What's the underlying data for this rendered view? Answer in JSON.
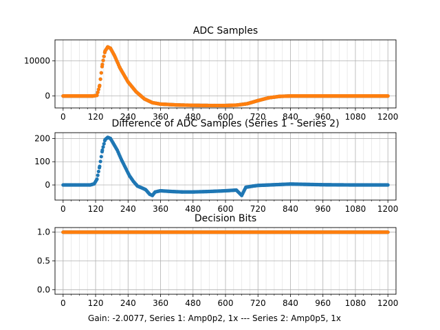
{
  "caption": "Gain: -2.0077, Series 1: Amp0p2, 1x --- Series 2: Amp0p5, 1x",
  "colors": {
    "series1": "#1f77b4",
    "series2": "#ff7f0e",
    "grid": "#b0b0b0",
    "axes": "#000000"
  },
  "chart_data": [
    {
      "type": "scatter",
      "title": "ADC Samples",
      "xlim": [
        -30,
        1230
      ],
      "ylim": [
        -3400,
        16000
      ],
      "xticks": [
        0,
        120,
        240,
        360,
        480,
        600,
        720,
        840,
        960,
        1080,
        1200
      ],
      "xminor_step": 30,
      "yticks": [
        0,
        10000
      ],
      "grid": true,
      "series": [
        {
          "color": "series1",
          "points": [
            [
              0,
              0
            ],
            [
              110,
              0
            ],
            [
              125,
              200
            ],
            [
              135,
              3000
            ],
            [
              145,
              9000
            ],
            [
              155,
              12800
            ],
            [
              165,
              14000
            ],
            [
              175,
              13600
            ],
            [
              190,
              11500
            ],
            [
              210,
              8000
            ],
            [
              240,
              4000
            ],
            [
              270,
              1200
            ],
            [
              300,
              -800
            ],
            [
              330,
              -1900
            ],
            [
              360,
              -2300
            ],
            [
              420,
              -2550
            ],
            [
              480,
              -2650
            ],
            [
              540,
              -2700
            ],
            [
              600,
              -2700
            ],
            [
              640,
              -2600
            ],
            [
              680,
              -2200
            ],
            [
              720,
              -1300
            ],
            [
              760,
              -500
            ],
            [
              800,
              -100
            ],
            [
              840,
              0
            ],
            [
              960,
              0
            ],
            [
              1080,
              0
            ],
            [
              1200,
              0
            ]
          ]
        },
        {
          "color": "series2",
          "points": [
            [
              0,
              0
            ],
            [
              110,
              0
            ],
            [
              125,
              200
            ],
            [
              135,
              3000
            ],
            [
              145,
              9000
            ],
            [
              155,
              12800
            ],
            [
              165,
              14000
            ],
            [
              175,
              13600
            ],
            [
              190,
              11500
            ],
            [
              210,
              8000
            ],
            [
              240,
              4000
            ],
            [
              270,
              1200
            ],
            [
              300,
              -800
            ],
            [
              330,
              -1900
            ],
            [
              360,
              -2300
            ],
            [
              420,
              -2550
            ],
            [
              480,
              -2650
            ],
            [
              540,
              -2700
            ],
            [
              600,
              -2700
            ],
            [
              640,
              -2600
            ],
            [
              680,
              -2200
            ],
            [
              720,
              -1300
            ],
            [
              760,
              -500
            ],
            [
              800,
              -100
            ],
            [
              840,
              0
            ],
            [
              960,
              0
            ],
            [
              1080,
              0
            ],
            [
              1200,
              0
            ]
          ]
        }
      ]
    },
    {
      "type": "scatter",
      "title": "Difference of ADC Samples (Series 1 - Series 2)",
      "xlim": [
        -30,
        1230
      ],
      "ylim": [
        -65,
        225
      ],
      "xticks": [
        0,
        120,
        240,
        360,
        480,
        600,
        720,
        840,
        960,
        1080,
        1200
      ],
      "xminor_step": 30,
      "yticks": [
        0,
        100,
        200
      ],
      "grid": true,
      "series": [
        {
          "color": "series1",
          "points": [
            [
              0,
              0
            ],
            [
              100,
              0
            ],
            [
              115,
              5
            ],
            [
              125,
              25
            ],
            [
              135,
              80
            ],
            [
              145,
              150
            ],
            [
              155,
              195
            ],
            [
              165,
              205
            ],
            [
              175,
              200
            ],
            [
              185,
              180
            ],
            [
              200,
              150
            ],
            [
              215,
              110
            ],
            [
              230,
              75
            ],
            [
              245,
              40
            ],
            [
              260,
              15
            ],
            [
              275,
              -5
            ],
            [
              290,
              -12
            ],
            [
              305,
              -20
            ],
            [
              320,
              -40
            ],
            [
              330,
              -45
            ],
            [
              340,
              -30
            ],
            [
              360,
              -25
            ],
            [
              400,
              -28
            ],
            [
              440,
              -30
            ],
            [
              480,
              -30
            ],
            [
              540,
              -28
            ],
            [
              600,
              -25
            ],
            [
              640,
              -22
            ],
            [
              660,
              -45
            ],
            [
              675,
              -10
            ],
            [
              700,
              -5
            ],
            [
              720,
              -2
            ],
            [
              760,
              0
            ],
            [
              800,
              2
            ],
            [
              840,
              4
            ],
            [
              880,
              3
            ],
            [
              960,
              1
            ],
            [
              1080,
              0
            ],
            [
              1200,
              0
            ]
          ]
        }
      ]
    },
    {
      "type": "scatter",
      "title": "Decision Bits",
      "xlim": [
        -30,
        1230
      ],
      "ylim": [
        -0.08,
        1.08
      ],
      "xticks": [
        0,
        120,
        240,
        360,
        480,
        600,
        720,
        840,
        960,
        1080,
        1200
      ],
      "xminor_step": 30,
      "yticks": [
        0.0,
        0.5,
        1.0
      ],
      "grid": true,
      "series": [
        {
          "color": "series1",
          "points": [
            [
              0,
              1
            ],
            [
              1200,
              1
            ]
          ]
        },
        {
          "color": "series2",
          "points": [
            [
              0,
              1
            ],
            [
              1200,
              1
            ]
          ]
        }
      ]
    }
  ]
}
